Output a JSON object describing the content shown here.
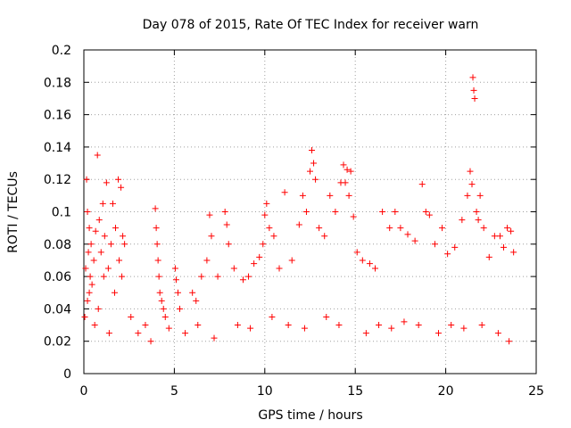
{
  "chart_data": {
    "type": "scatter",
    "title": "Day 078 of 2015, Rate Of TEC Index for receiver warn",
    "xlabel": "GPS time / hours",
    "ylabel": "ROTI / TECUs",
    "xlim": [
      0,
      25
    ],
    "ylim": [
      0,
      0.2
    ],
    "xticks": [
      "0",
      "5",
      "10",
      "15",
      "20",
      "25"
    ],
    "yticks": [
      "0",
      "0.02",
      "0.04",
      "0.06",
      "0.08",
      "0.1",
      "0.12",
      "0.14",
      "0.16",
      "0.18",
      "0.2"
    ],
    "grid": true,
    "marker": "+",
    "color": "#ff0000",
    "series": [
      {
        "x": [
          0.05,
          0.1,
          0.15,
          0.2,
          0.25,
          0.3,
          0.35,
          0.4,
          0.45,
          0.55,
          0.65,
          0.75,
          0.85,
          0.95,
          1.05,
          1.15,
          1.25,
          1.35,
          1.5,
          1.6,
          1.75,
          1.9,
          2.05,
          2.15,
          2.25,
          0.2,
          0.3,
          0.8,
          1.1,
          1.7,
          1.95,
          2.1,
          3.95,
          4.0,
          4.05,
          4.1,
          4.15,
          4.2,
          4.3,
          4.4,
          4.5,
          5.05,
          5.1,
          5.2,
          5.3,
          6.0,
          6.2,
          6.5,
          6.8,
          6.95,
          7.05,
          7.4,
          7.8,
          7.9,
          8.0,
          8.3,
          8.8,
          9.1,
          9.4,
          9.7,
          9.9,
          10.0,
          10.1,
          10.25,
          10.5,
          10.8,
          11.1,
          11.5,
          11.9,
          12.1,
          12.3,
          12.5,
          12.6,
          12.7,
          12.8,
          13.0,
          13.3,
          13.6,
          13.9,
          14.2,
          14.35,
          14.45,
          14.55,
          14.65,
          14.75,
          14.9,
          15.1,
          15.4,
          15.8,
          16.1,
          16.5,
          16.9,
          17.2,
          17.5,
          17.9,
          18.3,
          18.7,
          18.9,
          19.1,
          19.4,
          19.8,
          20.1,
          20.5,
          20.9,
          21.2,
          21.35,
          21.45,
          21.5,
          21.55,
          21.6,
          21.7,
          21.8,
          21.9,
          22.1,
          22.4,
          22.7,
          23.0,
          23.2,
          23.4,
          23.6,
          23.75,
          0.6,
          1.4,
          2.6,
          3.0,
          3.4,
          3.7,
          4.7,
          5.6,
          6.3,
          7.2,
          8.5,
          9.2,
          10.4,
          11.3,
          12.2,
          13.4,
          14.1,
          15.6,
          16.3,
          17.0,
          17.7,
          18.5,
          19.6,
          20.3,
          21.0,
          22.0,
          22.9,
          23.5
        ],
        "y": [
          0.035,
          0.065,
          0.12,
          0.1,
          0.075,
          0.09,
          0.06,
          0.08,
          0.055,
          0.07,
          0.088,
          0.135,
          0.095,
          0.075,
          0.105,
          0.085,
          0.118,
          0.065,
          0.08,
          0.105,
          0.09,
          0.12,
          0.115,
          0.085,
          0.08,
          0.045,
          0.05,
          0.04,
          0.06,
          0.05,
          0.07,
          0.06,
          0.102,
          0.09,
          0.08,
          0.07,
          0.06,
          0.05,
          0.045,
          0.04,
          0.035,
          0.065,
          0.058,
          0.05,
          0.04,
          0.05,
          0.045,
          0.06,
          0.07,
          0.098,
          0.085,
          0.06,
          0.1,
          0.092,
          0.08,
          0.065,
          0.058,
          0.06,
          0.068,
          0.072,
          0.08,
          0.098,
          0.105,
          0.09,
          0.085,
          0.065,
          0.112,
          0.07,
          0.092,
          0.11,
          0.1,
          0.125,
          0.138,
          0.13,
          0.12,
          0.09,
          0.085,
          0.11,
          0.1,
          0.118,
          0.129,
          0.118,
          0.126,
          0.11,
          0.125,
          0.097,
          0.075,
          0.07,
          0.068,
          0.065,
          0.1,
          0.09,
          0.1,
          0.09,
          0.086,
          0.082,
          0.117,
          0.1,
          0.098,
          0.08,
          0.09,
          0.074,
          0.078,
          0.095,
          0.11,
          0.125,
          0.117,
          0.183,
          0.175,
          0.17,
          0.1,
          0.095,
          0.11,
          0.09,
          0.072,
          0.085,
          0.085,
          0.078,
          0.09,
          0.088,
          0.075,
          0.03,
          0.025,
          0.035,
          0.025,
          0.03,
          0.02,
          0.028,
          0.025,
          0.03,
          0.022,
          0.03,
          0.028,
          0.035,
          0.03,
          0.028,
          0.035,
          0.03,
          0.025,
          0.03,
          0.028,
          0.032,
          0.03,
          0.025,
          0.03,
          0.028,
          0.03,
          0.025,
          0.02
        ]
      }
    ]
  }
}
